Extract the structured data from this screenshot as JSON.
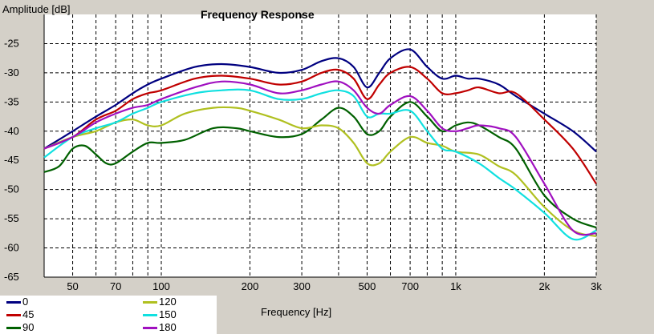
{
  "chart_data": {
    "type": "line",
    "title": "Frequency Response",
    "ylabel": "Amplitude [dB]",
    "xlabel": "Frequency [Hz]",
    "xscale": "log",
    "xlim": [
      40,
      3000
    ],
    "ylim": [
      -65,
      -20
    ],
    "grid": true,
    "x_ticks": [
      {
        "value": 50,
        "label": "50"
      },
      {
        "value": 70,
        "label": "70"
      },
      {
        "value": 100,
        "label": "100"
      },
      {
        "value": 200,
        "label": "200"
      },
      {
        "value": 300,
        "label": "300"
      },
      {
        "value": 500,
        "label": "500"
      },
      {
        "value": 700,
        "label": "700"
      },
      {
        "value": 1000,
        "label": "1k"
      },
      {
        "value": 2000,
        "label": "2k"
      },
      {
        "value": 3000,
        "label": "3k"
      }
    ],
    "x_minor": [
      40,
      60,
      80,
      90,
      400,
      600,
      800,
      900
    ],
    "y_ticks": [
      -25,
      -30,
      -35,
      -40,
      -45,
      -50,
      -55,
      -60,
      -65
    ],
    "series": [
      {
        "name": "0",
        "color": "#000080",
        "x": [
          40,
          50,
          60,
          70,
          80,
          90,
          100,
          130,
          160,
          200,
          250,
          300,
          350,
          400,
          450,
          500,
          550,
          600,
          700,
          800,
          900,
          1000,
          1100,
          1200,
          1400,
          1600,
          2000,
          2500,
          3000
        ],
        "y": [
          -43,
          -40,
          -37.5,
          -35.5,
          -33.5,
          -32,
          -31,
          -29,
          -28.5,
          -29,
          -30,
          -29.5,
          -28,
          -27.5,
          -29,
          -32.5,
          -30,
          -27.5,
          -26,
          -29,
          -31,
          -30.5,
          -31,
          -31,
          -32,
          -34,
          -37,
          -40,
          -43.5
        ]
      },
      {
        "name": "45",
        "color": "#c00000",
        "x": [
          40,
          50,
          60,
          70,
          80,
          90,
          100,
          130,
          160,
          200,
          250,
          300,
          350,
          400,
          450,
          500,
          550,
          600,
          700,
          800,
          900,
          1000,
          1100,
          1200,
          1400,
          1600,
          2000,
          2500,
          3000
        ],
        "y": [
          -43,
          -41,
          -38,
          -36.5,
          -34.5,
          -33.5,
          -33,
          -31,
          -30.5,
          -31,
          -32,
          -31.5,
          -30,
          -29.5,
          -31,
          -34.5,
          -32,
          -30,
          -29,
          -31,
          -33.5,
          -33.5,
          -33,
          -32.5,
          -33.5,
          -33.5,
          -38,
          -43,
          -49
        ]
      },
      {
        "name": "90",
        "color": "#006000",
        "x": [
          40,
          45,
          50,
          55,
          60,
          65,
          70,
          80,
          90,
          100,
          120,
          150,
          180,
          200,
          250,
          300,
          350,
          400,
          450,
          500,
          550,
          600,
          700,
          800,
          900,
          1000,
          1100,
          1200,
          1400,
          1600,
          2000,
          2500,
          3000
        ],
        "y": [
          -47,
          -46,
          -43,
          -42.5,
          -44,
          -45.5,
          -45.5,
          -43.5,
          -42,
          -42,
          -41.5,
          -39.5,
          -39.5,
          -40,
          -41,
          -40.5,
          -38,
          -36,
          -37.5,
          -40.5,
          -40,
          -37.5,
          -35,
          -37.5,
          -40,
          -39,
          -38.5,
          -39,
          -41,
          -43,
          -51,
          -55,
          -56.5
        ]
      },
      {
        "name": "120",
        "color": "#b0c020",
        "x": [
          40,
          50,
          60,
          70,
          80,
          90,
          100,
          120,
          150,
          180,
          200,
          250,
          300,
          350,
          400,
          450,
          500,
          550,
          600,
          700,
          800,
          900,
          1000,
          1200,
          1400,
          1600,
          2000,
          2500,
          3000
        ],
        "y": [
          -43,
          -41,
          -40,
          -38.5,
          -38,
          -39,
          -39,
          -37,
          -36,
          -36,
          -36.5,
          -38,
          -39.5,
          -39,
          -39.5,
          -42,
          -45.5,
          -45.5,
          -43.5,
          -41,
          -42,
          -42.5,
          -43.5,
          -44,
          -46,
          -47.5,
          -53,
          -57,
          -58
        ]
      },
      {
        "name": "150",
        "color": "#10e0e0",
        "x": [
          40,
          50,
          60,
          70,
          80,
          90,
          100,
          130,
          160,
          200,
          250,
          300,
          350,
          400,
          450,
          500,
          550,
          600,
          700,
          800,
          900,
          1000,
          1200,
          1400,
          1600,
          2000,
          2500,
          3000
        ],
        "y": [
          -44.5,
          -41,
          -39.5,
          -38.5,
          -37,
          -36,
          -35,
          -33.5,
          -33,
          -33,
          -34.5,
          -34.5,
          -33.5,
          -33,
          -34,
          -37.5,
          -37,
          -37,
          -36.5,
          -40,
          -43,
          -43.5,
          -45.5,
          -48,
          -50,
          -54,
          -58.5,
          -57
        ]
      },
      {
        "name": "180",
        "color": "#a010c0",
        "x": [
          40,
          50,
          60,
          70,
          80,
          90,
          100,
          130,
          160,
          200,
          250,
          300,
          350,
          400,
          450,
          500,
          550,
          600,
          700,
          800,
          900,
          1000,
          1100,
          1200,
          1400,
          1600,
          2000,
          2500,
          3000
        ],
        "y": [
          -43,
          -41,
          -38.5,
          -37,
          -36,
          -35.5,
          -34.5,
          -32.5,
          -31.5,
          -32,
          -33.5,
          -33,
          -32,
          -31.5,
          -33,
          -36,
          -37,
          -35.5,
          -34,
          -36.5,
          -39.5,
          -40,
          -39.5,
          -39,
          -39.5,
          -41,
          -49,
          -57,
          -57.5
        ]
      }
    ]
  }
}
